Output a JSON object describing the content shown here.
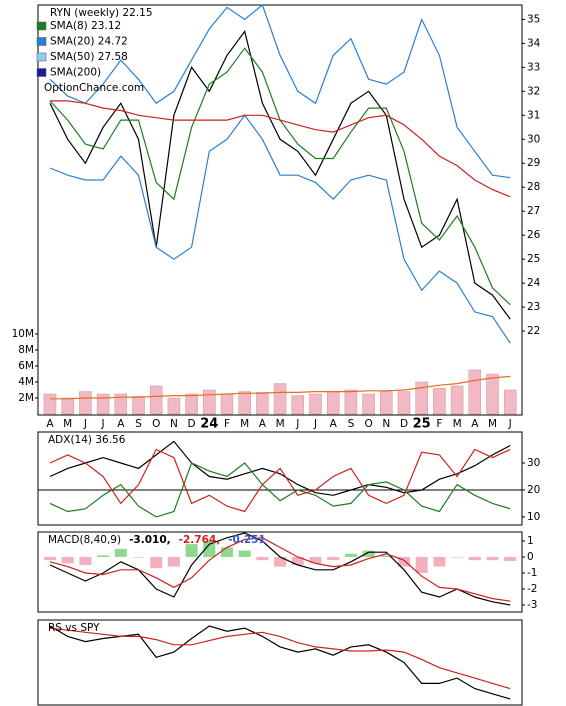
{
  "chart_data": [
    {
      "type": "line",
      "title": "RYN (weekly) 22.15",
      "watermark": "OptionChance.com",
      "categories": [
        "A",
        "M",
        "J",
        "J",
        "A",
        "S",
        "O",
        "N",
        "D",
        "24",
        "F",
        "M",
        "A",
        "M",
        "J",
        "J",
        "A",
        "S",
        "O",
        "N",
        "D",
        "25",
        "F",
        "M",
        "A",
        "M",
        "J"
      ],
      "ylim": [
        18.5,
        35.6
      ],
      "yticks": [
        22,
        23,
        24,
        25,
        26,
        27,
        28,
        29,
        30,
        31,
        32,
        33,
        34,
        35
      ],
      "legend": [
        {
          "name": "SMA(8) 23.12",
          "color": "#1e7d1e"
        },
        {
          "name": "SMA(20) 24.72",
          "color": "#2a7fd4"
        },
        {
          "name": "SMA(50) 27.58",
          "color": "#8fd0f0"
        },
        {
          "name": "SMA(200)",
          "color": "#1a1aa0"
        }
      ],
      "series": [
        {
          "color": "#000000",
          "values": [
            31.5,
            30,
            29,
            30.5,
            31.5,
            30,
            25.5,
            31,
            33,
            32,
            33.5,
            34.5,
            31.5,
            30,
            29.5,
            28.5,
            30,
            31.5,
            32,
            31,
            27.5,
            25.5,
            26,
            27.5,
            24,
            23.5,
            22.5
          ]
        },
        {
          "color": "#1e7d1e",
          "values": [
            31.6,
            30.8,
            29.8,
            29.6,
            30.8,
            30.8,
            28.2,
            27.5,
            30.5,
            32.3,
            32.8,
            33.8,
            32.8,
            30.8,
            29.8,
            29.2,
            29.2,
            30.3,
            31.3,
            31.3,
            29.5,
            26.5,
            25.8,
            26.8,
            25.5,
            23.8,
            23.1
          ]
        },
        {
          "color": "#2a7fd4",
          "values": [
            32.5,
            31.8,
            31.5,
            32.3,
            33.3,
            32.5,
            31.5,
            32,
            33.3,
            34.6,
            35.5,
            35,
            35.6,
            33.5,
            32,
            31.5,
            33.5,
            34.2,
            32.5,
            32.3,
            32.8,
            35,
            33.5,
            30.5,
            29.5,
            28.5,
            28.4
          ]
        },
        {
          "color": "#2a7fd4",
          "values": [
            28.8,
            28.5,
            28.3,
            28.3,
            29.3,
            28.5,
            25.5,
            25,
            25.5,
            29.5,
            30,
            31,
            30,
            28.5,
            28.5,
            28.2,
            27.5,
            28.3,
            28.5,
            28.3,
            25,
            23.7,
            24.5,
            24,
            22.8,
            22.6,
            21.5
          ]
        },
        {
          "color": "#d02020",
          "values": [
            31.6,
            31.6,
            31.5,
            31.3,
            31.2,
            31,
            30.9,
            30.8,
            30.8,
            30.8,
            30.8,
            31,
            31,
            30.8,
            30.6,
            30.4,
            30.3,
            30.6,
            30.9,
            31,
            30.6,
            30,
            29.3,
            28.9,
            28.3,
            27.9,
            27.6
          ]
        }
      ]
    },
    {
      "type": "bar",
      "ylim": [
        0,
        12000000
      ],
      "yticks": [
        {
          "value": 2000000,
          "label": "2M"
        },
        {
          "value": 4000000,
          "label": "4M"
        },
        {
          "value": 6000000,
          "label": "6M"
        },
        {
          "value": 8000000,
          "label": "8M"
        },
        {
          "value": 10000000,
          "label": "10M"
        }
      ],
      "series": [
        {
          "color": "#f2b8c4",
          "values": [
            2500000,
            2000000,
            2800000,
            2500000,
            2500000,
            2200000,
            3500000,
            2000000,
            2500000,
            3000000,
            2500000,
            2800000,
            2700000,
            3800000,
            2300000,
            2500000,
            2800000,
            3000000,
            2500000,
            2800000,
            2800000,
            4000000,
            3200000,
            3500000,
            5500000,
            5000000,
            3000000
          ]
        },
        {
          "type": "line",
          "color": "#e07020",
          "values": [
            1900000,
            1900000,
            2000000,
            2000000,
            2100000,
            2100000,
            2200000,
            2300000,
            2300000,
            2400000,
            2500000,
            2600000,
            2600000,
            2700000,
            2700000,
            2800000,
            2800000,
            2800000,
            2900000,
            2900000,
            3000000,
            3300000,
            3600000,
            3800000,
            4200000,
            4500000,
            4700000
          ]
        }
      ]
    },
    {
      "type": "line",
      "title": "ADX(14) 36.56",
      "ylim": [
        7,
        41.5
      ],
      "yticks": [
        10,
        20,
        30
      ],
      "hline": 20,
      "series": [
        {
          "color": "#000000",
          "values": [
            25,
            28,
            30,
            32,
            30,
            28,
            33,
            38,
            30,
            25,
            24,
            26,
            28,
            26,
            22,
            19,
            18,
            20,
            22,
            21,
            19,
            20,
            24,
            26,
            29,
            33,
            36.5
          ]
        },
        {
          "color": "#1e7d1e",
          "values": [
            15,
            12,
            13,
            18,
            22,
            14,
            10,
            12,
            30,
            27,
            25,
            30,
            22,
            16,
            20,
            18,
            14,
            15,
            22,
            23,
            20,
            14,
            12,
            22,
            18,
            15,
            13
          ]
        },
        {
          "color": "#d02020",
          "values": [
            30,
            33,
            30,
            25,
            15,
            22,
            35,
            32,
            15,
            18,
            14,
            12,
            22,
            28,
            18,
            20,
            25,
            28,
            18,
            15,
            18,
            34,
            33,
            25,
            35,
            32,
            35
          ]
        }
      ]
    },
    {
      "type": "line",
      "title": "MACD(8,40,9)",
      "title_parts": [
        {
          "text": "-3.010,",
          "color": "#000000"
        },
        {
          "text": "-2.764,",
          "color": "#d02020"
        },
        {
          "text": "-0.251",
          "color": "#2a5fd4"
        }
      ],
      "ylim": [
        -3.44,
        1.56
      ],
      "yticks": [
        1,
        0,
        -1,
        -2,
        -3
      ],
      "series": [
        {
          "type": "bar",
          "pos_color": "#8fd88f",
          "neg_color": "#f2b0bc",
          "values": [
            -0.2,
            -0.4,
            -0.5,
            0.1,
            0.5,
            0,
            -0.7,
            -0.6,
            0.8,
            1,
            0.6,
            0.4,
            -0.2,
            -0.6,
            -0.5,
            -0.4,
            -0.2,
            0.2,
            0.4,
            0.1,
            -0.6,
            -1,
            -0.6,
            0,
            -0.2,
            -0.2,
            -0.25
          ]
        },
        {
          "color": "#000000",
          "values": [
            -0.5,
            -1,
            -1.5,
            -1,
            -0.3,
            -0.8,
            -2,
            -2.5,
            -0.5,
            0.8,
            1.2,
            1.5,
            1,
            0,
            -0.5,
            -0.8,
            -0.8,
            -0.3,
            0.3,
            0.3,
            -0.8,
            -2.2,
            -2.5,
            -2,
            -2.5,
            -2.8,
            -3
          ]
        },
        {
          "color": "#d02020",
          "values": [
            -0.3,
            -0.6,
            -1,
            -1.1,
            -0.8,
            -0.8,
            -1.3,
            -1.9,
            -1.3,
            -0.2,
            0.6,
            1.1,
            1.2,
            0.6,
            0,
            -0.4,
            -0.6,
            -0.5,
            -0.1,
            0.2,
            -0.2,
            -1.2,
            -1.9,
            -2,
            -2.3,
            -2.6,
            -2.76
          ]
        }
      ]
    },
    {
      "type": "line",
      "title": "RS vs SPY",
      "series": [
        {
          "color": "#000000",
          "values": [
            80,
            70,
            65,
            68,
            70,
            72,
            50,
            55,
            68,
            80,
            75,
            78,
            70,
            60,
            55,
            58,
            52,
            60,
            62,
            55,
            45,
            25,
            25,
            30,
            20,
            15,
            10
          ]
        },
        {
          "color": "#d02020",
          "values": [
            78,
            76,
            74,
            72,
            70,
            70,
            67,
            62,
            62,
            66,
            70,
            72,
            74,
            70,
            64,
            60,
            58,
            56,
            56,
            57,
            55,
            48,
            40,
            35,
            30,
            25,
            20
          ]
        }
      ]
    }
  ]
}
